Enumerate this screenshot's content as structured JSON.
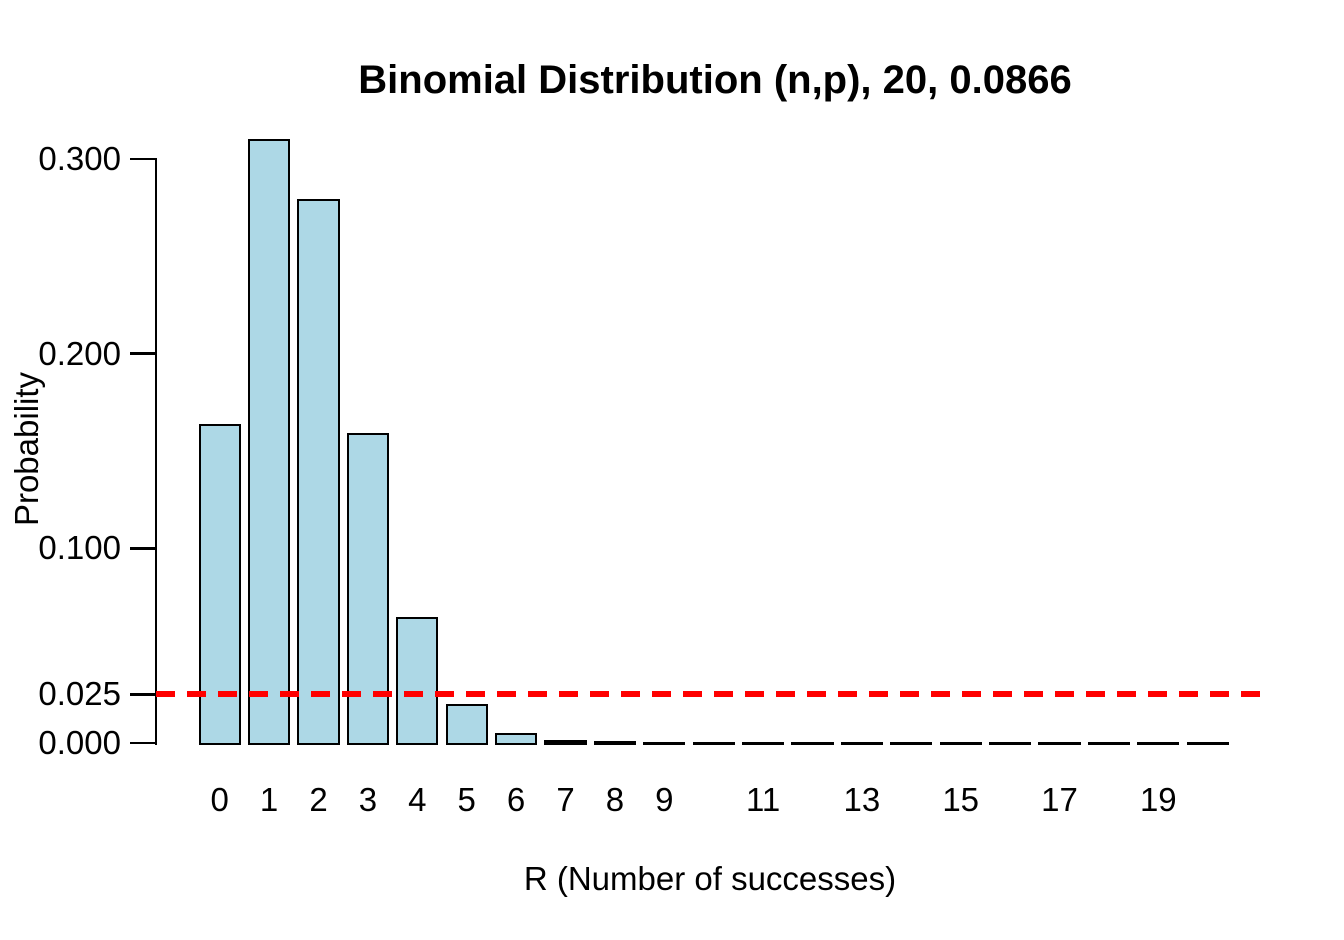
{
  "chart_data": {
    "type": "bar",
    "title": "Binomial Distribution (n,p), 20, 0.0866",
    "xlabel": "R (Number of successes)",
    "ylabel": "Probability",
    "parameters": {
      "n": 20,
      "p": 0.0866
    },
    "categories": [
      0,
      1,
      2,
      3,
      4,
      5,
      6,
      7,
      8,
      9,
      10,
      11,
      12,
      13,
      14,
      15,
      16,
      17,
      18,
      19,
      20
    ],
    "values": [
      0.16339,
      0.30982,
      0.27905,
      0.15875,
      0.06396,
      0.01941,
      0.0046,
      0.00087,
      0.00013,
      2e-05,
      2e-06,
      0,
      0,
      0,
      0,
      0,
      0,
      0,
      0,
      0,
      0
    ],
    "x_tick_labels": [
      "0",
      "1",
      "2",
      "3",
      "4",
      "5",
      "6",
      "7",
      "8",
      "9",
      "11",
      "13",
      "15",
      "17",
      "19"
    ],
    "y_tick_values": [
      0.0,
      0.025,
      0.1,
      0.2,
      0.3
    ],
    "y_tick_labels": [
      "0.000",
      "0.025",
      "0.100",
      "0.200",
      "0.300"
    ],
    "ylim": [
      0,
      0.31
    ],
    "grid": false,
    "legend": null,
    "reference_line": {
      "y": 0.025,
      "color": "#ff0000",
      "style": "dashed"
    },
    "colors": {
      "bar_fill": "#add8e6",
      "bar_border": "#000000",
      "reference": "#ff0000",
      "axis": "#000000",
      "text": "#000000",
      "background": "#ffffff"
    }
  }
}
